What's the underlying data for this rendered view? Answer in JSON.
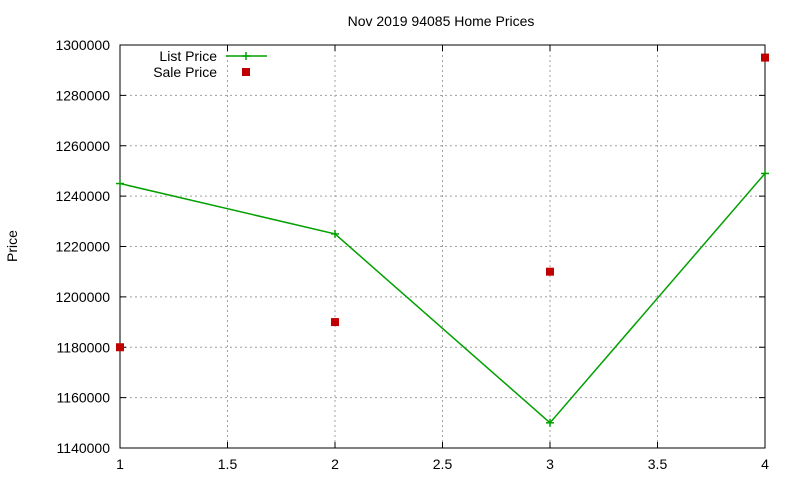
{
  "chart_data": {
    "type": "line",
    "title": "Nov 2019 94085 Home Prices",
    "xlabel": "",
    "ylabel": "Price",
    "xlim": [
      1,
      4
    ],
    "ylim": [
      1140000,
      1300000
    ],
    "x_ticks": [
      "1",
      "1.5",
      "2",
      "2.5",
      "3",
      "3.5",
      "4"
    ],
    "x_tick_values": [
      1,
      1.5,
      2,
      2.5,
      3,
      3.5,
      4
    ],
    "y_ticks": [
      "1140000",
      "1160000",
      "1180000",
      "1200000",
      "1220000",
      "1240000",
      "1260000",
      "1280000",
      "1300000"
    ],
    "y_tick_values": [
      1140000,
      1160000,
      1180000,
      1200000,
      1220000,
      1240000,
      1260000,
      1280000,
      1300000
    ],
    "grid": true,
    "legend_position": "top-left",
    "series": [
      {
        "name": "List Price",
        "style": "linespoints",
        "color": "#00a000",
        "x": [
          1,
          2,
          3,
          4
        ],
        "values": [
          1245000,
          1225000,
          1150000,
          1249000
        ]
      },
      {
        "name": "Sale Price",
        "style": "points",
        "color": "#c00000",
        "x": [
          1,
          2,
          3,
          4
        ],
        "values": [
          1180000,
          1190000,
          1210000,
          1295000
        ]
      }
    ]
  }
}
